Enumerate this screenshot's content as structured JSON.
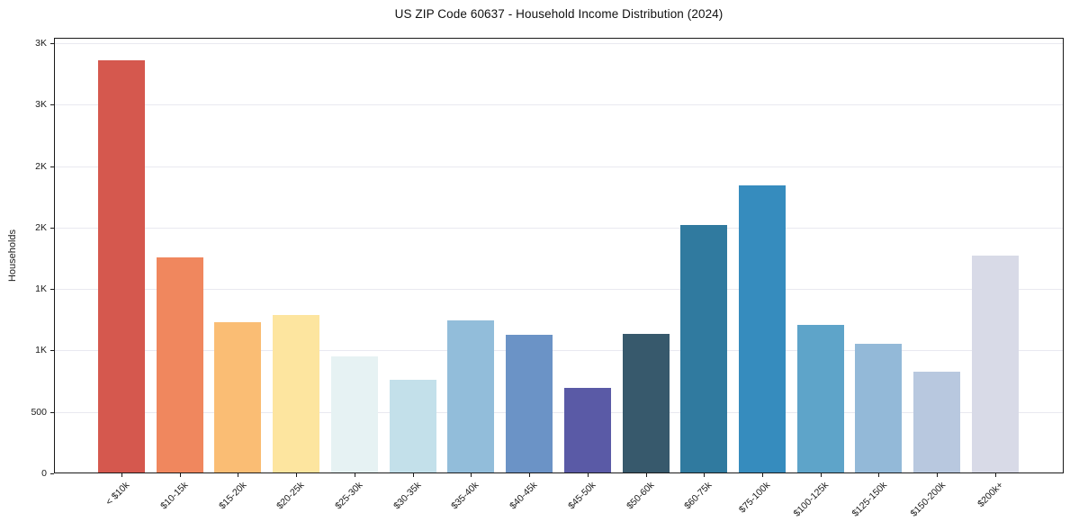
{
  "chart_data": {
    "type": "bar",
    "title": "US ZIP Code 60637 - Household Income Distribution (2024)",
    "xlabel": "",
    "ylabel": "Households",
    "categories": [
      "< $10k",
      "$10-15k",
      "$15-20k",
      "$20-25k",
      "$25-30k",
      "$30-35k",
      "$35-40k",
      "$40-45k",
      "$45-50k",
      "$50-60k",
      "$60-75k",
      "$75-100k",
      "$100-125k",
      "$125-150k",
      "$150-200k",
      "$200k+"
    ],
    "values": [
      3350,
      1750,
      1220,
      1280,
      945,
      755,
      1240,
      1120,
      685,
      1125,
      2015,
      2335,
      1200,
      1045,
      820,
      1765
    ],
    "bar_colors": [
      "#d5584e",
      "#f0875e",
      "#fabd74",
      "#fde59f",
      "#e6f2f3",
      "#c3e0ea",
      "#92bdda",
      "#6b93c6",
      "#5a5aa6",
      "#37596c",
      "#307a9f",
      "#368cbe",
      "#5ea4c9",
      "#93b9d8",
      "#b8c8df",
      "#d8dae7"
    ],
    "ylim": [
      0,
      3500
    ],
    "yticks": {
      "values": [
        0,
        500,
        1000,
        1500,
        2000,
        2500,
        3000,
        3500
      ],
      "labels": [
        "0",
        "500",
        "1K",
        "1K",
        "2K",
        "2K",
        "3K",
        "3K"
      ]
    },
    "grid": "horizontal",
    "legend": "none",
    "colors": {
      "background": "#ffffff",
      "spine": "#1a1a1a",
      "gridline": "#e9e9f0",
      "text": "#1a1a1a"
    }
  }
}
